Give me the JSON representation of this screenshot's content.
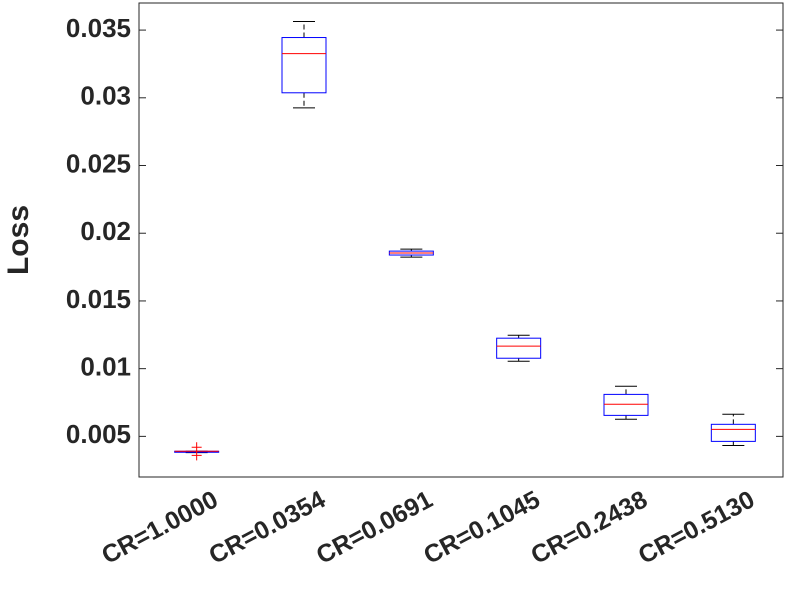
{
  "chart_data": {
    "type": "box",
    "ylabel": "Loss",
    "categories": [
      "CR=1.0000",
      "CR=0.0354",
      "CR=0.0691",
      "CR=0.1045",
      "CR=0.2438",
      "CR=0.5130"
    ],
    "boxes": [
      {
        "min": 0.0038,
        "q1": 0.00385,
        "median": 0.0039,
        "q3": 0.0039,
        "max": 0.0039,
        "outliers": [
          0.0042,
          0.0036
        ]
      },
      {
        "min": 0.02926,
        "q1": 0.03037,
        "median": 0.03326,
        "q3": 0.03445,
        "max": 0.03563,
        "outliers": []
      },
      {
        "min": 0.01824,
        "q1": 0.01839,
        "median": 0.01854,
        "q3": 0.01868,
        "max": 0.01883,
        "outliers": []
      },
      {
        "min": 0.01055,
        "q1": 0.01077,
        "median": 0.01166,
        "q3": 0.01225,
        "max": 0.01247,
        "outliers": []
      },
      {
        "min": 0.00626,
        "q1": 0.00655,
        "median": 0.00737,
        "q3": 0.0081,
        "max": 0.0087,
        "outliers": []
      },
      {
        "min": 0.00433,
        "q1": 0.00463,
        "median": 0.00552,
        "q3": 0.00589,
        "max": 0.00663,
        "outliers": []
      }
    ],
    "ylim": [
      0.002,
      0.037
    ],
    "yticks": [
      0.005,
      0.01,
      0.015,
      0.02,
      0.025,
      0.03,
      0.035
    ],
    "box_color": "#0000ff",
    "median_color": "#ff0000",
    "whisker_color": "#000000",
    "outlier_color": "#ff0000",
    "grid": false
  }
}
